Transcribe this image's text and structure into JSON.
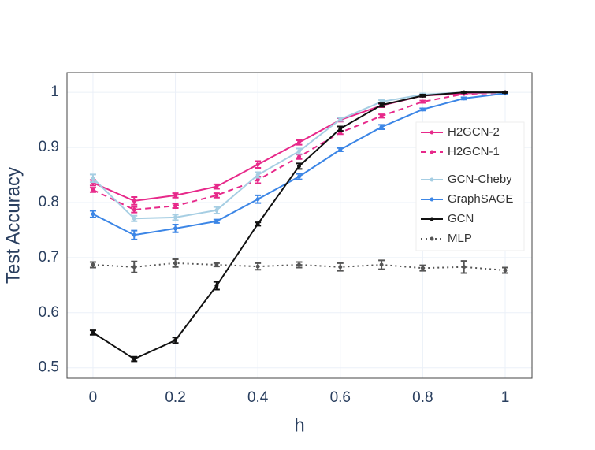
{
  "chart_data": {
    "type": "line",
    "x_label": "h",
    "y_label": "Test Accuracy",
    "x": [
      0,
      0.1,
      0.2,
      0.3,
      0.4,
      0.5,
      0.6,
      0.7,
      0.8,
      0.9,
      1
    ],
    "xlim": [
      -0.063,
      1.065
    ],
    "xticks": [
      0,
      0.2,
      0.4,
      0.6,
      0.8,
      1
    ],
    "ylim": [
      0.481,
      1.036
    ],
    "yticks": [
      0.5,
      0.6,
      0.7,
      0.8,
      0.9,
      1
    ],
    "grid": true,
    "legend": "upper right",
    "series": [
      {
        "name": "H2GCN-2",
        "color": "#e7298a",
        "dash": "solid",
        "values": [
          0.836,
          0.803,
          0.813,
          0.829,
          0.869,
          0.909,
          0.95,
          0.976,
          0.994,
          0.998,
          1.0
        ],
        "errors": [
          0.005,
          0.007,
          0.004,
          0.004,
          0.006,
          0.004,
          0.003,
          0.003,
          0.002,
          0.001,
          0.001
        ]
      },
      {
        "name": "H2GCN-1",
        "color": "#e7298a",
        "dash": "dash",
        "values": [
          0.823,
          0.787,
          0.794,
          0.813,
          0.841,
          0.883,
          0.927,
          0.957,
          0.983,
          0.997,
          0.999
        ],
        "errors": [
          0.004,
          0.005,
          0.004,
          0.004,
          0.006,
          0.004,
          0.003,
          0.003,
          0.002,
          0.001,
          0.001
        ]
      },
      {
        "name": "GCN-Cheby",
        "color": "#a6cee3",
        "dash": "solid",
        "values": [
          0.844,
          0.771,
          0.773,
          0.786,
          0.85,
          0.893,
          0.951,
          0.983,
          0.996,
          1.0,
          0.999
        ],
        "errors": [
          0.007,
          0.005,
          0.005,
          0.006,
          0.005,
          0.005,
          0.003,
          0.003,
          0.002,
          0.001,
          0.001
        ]
      },
      {
        "name": "GraphSAGE",
        "color": "#3c86e6",
        "dash": "solid",
        "values": [
          0.779,
          0.741,
          0.753,
          0.766,
          0.806,
          0.847,
          0.896,
          0.937,
          0.969,
          0.989,
          0.998
        ],
        "errors": [
          0.006,
          0.008,
          0.007,
          0.003,
          0.007,
          0.005,
          0.003,
          0.004,
          0.002,
          0.002,
          0.001
        ]
      },
      {
        "name": "GCN",
        "color": "#111111",
        "dash": "solid",
        "values": [
          0.564,
          0.516,
          0.55,
          0.649,
          0.761,
          0.866,
          0.934,
          0.977,
          0.994,
          1.0,
          1.0
        ],
        "errors": [
          0.004,
          0.004,
          0.005,
          0.007,
          0.003,
          0.005,
          0.004,
          0.003,
          0.002,
          0.001,
          0.001
        ]
      },
      {
        "name": "MLP",
        "color": "#555555",
        "dash": "dot",
        "values": [
          0.687,
          0.683,
          0.69,
          0.687,
          0.684,
          0.687,
          0.683,
          0.687,
          0.681,
          0.683,
          0.677
        ],
        "errors": [
          0.005,
          0.01,
          0.007,
          0.003,
          0.006,
          0.005,
          0.007,
          0.008,
          0.005,
          0.011,
          0.005
        ]
      }
    ]
  }
}
